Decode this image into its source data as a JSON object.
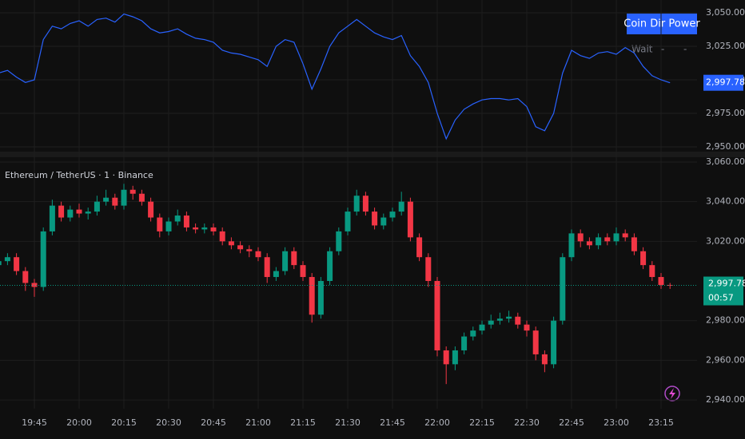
{
  "chart_data": [
    {
      "type": "line",
      "color": "#2962ff",
      "ylim": [
        2946.4,
        3059.5
      ],
      "yticks": [
        {
          "value": 2950,
          "label": "2,950.00"
        },
        {
          "value": 2975,
          "label": "2,975.00"
        },
        {
          "value": 3000,
          "label": "3,000.00"
        },
        {
          "value": 3025,
          "label": "3,025.00"
        },
        {
          "value": 3050,
          "label": "3,050.00"
        }
      ],
      "grid": true,
      "values": [
        3005,
        3007,
        3002,
        2998,
        3000,
        3030,
        3040,
        3038,
        3042,
        3044,
        3040,
        3045,
        3046,
        3043,
        3049,
        3047,
        3044,
        3038,
        3035,
        3036,
        3038,
        3034,
        3031,
        3030,
        3028,
        3022,
        3020,
        3019,
        3017,
        3015,
        3010,
        3025,
        3030,
        3028,
        3012,
        2993,
        3008,
        3025,
        3035,
        3040,
        3045,
        3040,
        3035,
        3032,
        3030,
        3033,
        3018,
        3010,
        2998,
        2975,
        2956,
        2970,
        2978,
        2982,
        2985,
        2986,
        2986,
        2985,
        2986,
        2980,
        2965,
        2962,
        2975,
        3005,
        3022,
        3018,
        3016,
        3020,
        3021,
        3019,
        3024,
        3020,
        3010,
        3003,
        3000,
        2997.78
      ],
      "last_value": {
        "value": 2997.78,
        "label": "2,997.78"
      },
      "table": {
        "header": "Coin Dir Power",
        "row": [
          "Wait",
          "-",
          "-"
        ]
      }
    },
    {
      "type": "candlestick",
      "title": "Ethereum / TetherUS · 1 · Binance",
      "up_color": "#089981",
      "down_color": "#f23645",
      "ylim": [
        2935.6,
        3062.4
      ],
      "yticks": [
        {
          "value": 2940,
          "label": "2,940.00"
        },
        {
          "value": 2960,
          "label": "2,960.00"
        },
        {
          "value": 2980,
          "label": "2,980.00"
        },
        {
          "value": 3020,
          "label": "3,020.00"
        },
        {
          "value": 3040,
          "label": "3,040.00"
        },
        {
          "value": 3060,
          "label": "3,060.00"
        }
      ],
      "grid": true,
      "xticks": [
        {
          "value": 4,
          "label": "19:45"
        },
        {
          "value": 9,
          "label": "20:00"
        },
        {
          "value": 14,
          "label": "20:15"
        },
        {
          "value": 19,
          "label": "20:30"
        },
        {
          "value": 24,
          "label": "20:45"
        },
        {
          "value": 29,
          "label": "21:00"
        },
        {
          "value": 34,
          "label": "21:15"
        },
        {
          "value": 39,
          "label": "21:30"
        },
        {
          "value": 44,
          "label": "21:45"
        },
        {
          "value": 49,
          "label": "22:00"
        },
        {
          "value": 54,
          "label": "22:15"
        },
        {
          "value": 59,
          "label": "22:30"
        },
        {
          "value": 64,
          "label": "22:45"
        },
        {
          "value": 69,
          "label": "23:00"
        },
        {
          "value": 74,
          "label": "23:15"
        }
      ],
      "open": [
        3008,
        3010,
        3012,
        3005,
        2999,
        2997,
        3025,
        3038,
        3032,
        3036,
        3034,
        3035,
        3040,
        3042,
        3038,
        3046,
        3044,
        3040,
        3032,
        3025,
        3030,
        3033,
        3027,
        3026,
        3027,
        3025,
        3020,
        3018,
        3016,
        3015,
        3012,
        3002,
        3005,
        3015,
        3008,
        3002,
        2983,
        3000,
        3015,
        3025,
        3035,
        3043,
        3035,
        3028,
        3032,
        3035,
        3040,
        3022,
        3012,
        3000,
        2965,
        2958,
        2965,
        2972,
        2975,
        2978,
        2980,
        2981,
        2982,
        2978,
        2975,
        2963,
        2958,
        2980,
        3012,
        3024,
        3020,
        3018,
        3022,
        3020,
        3024,
        3022,
        3015,
        3008,
        3002,
        2998
      ],
      "high": [
        3013,
        3014,
        3014,
        3007,
        3001,
        3027,
        3041,
        3040,
        3038,
        3039,
        3037,
        3043,
        3046,
        3044,
        3049,
        3048,
        3046,
        3042,
        3034,
        3032,
        3036,
        3035,
        3029,
        3029,
        3029,
        3027,
        3022,
        3020,
        3018,
        3017,
        3014,
        3007,
        3017,
        3017,
        3010,
        3004,
        3002,
        3017,
        3027,
        3037,
        3046,
        3045,
        3037,
        3034,
        3037,
        3045,
        3042,
        3024,
        3014,
        3002,
        2967,
        2967,
        2974,
        2977,
        2980,
        2983,
        2984,
        2985,
        2984,
        2980,
        2977,
        2965,
        2982,
        3014,
        3026,
        3026,
        3022,
        3024,
        3024,
        3027,
        3026,
        3024,
        3017,
        3010,
        3004,
        2999
      ],
      "low": [
        3006,
        3008,
        3003,
        2995,
        2992,
        2995,
        3023,
        3030,
        3030,
        3032,
        3031,
        3033,
        3038,
        3036,
        3036,
        3041,
        3038,
        3030,
        3022,
        3023,
        3028,
        3025,
        3024,
        3024,
        3023,
        3018,
        3016,
        3014,
        3012,
        3010,
        2999,
        3000,
        3003,
        3006,
        3000,
        2979,
        2981,
        2998,
        3013,
        3023,
        3033,
        3033,
        3026,
        3026,
        3030,
        3033,
        3020,
        3010,
        2997,
        2962,
        2948,
        2955,
        2963,
        2970,
        2973,
        2976,
        2978,
        2979,
        2976,
        2972,
        2960,
        2954,
        2956,
        2978,
        3010,
        3017,
        3016,
        3016,
        3018,
        3018,
        3020,
        3013,
        3006,
        3000,
        2996,
        2996
      ],
      "close": [
        3010,
        3012,
        3005,
        2999,
        2997,
        3025,
        3038,
        3032,
        3036,
        3034,
        3035,
        3040,
        3042,
        3038,
        3046,
        3044,
        3040,
        3032,
        3025,
        3030,
        3033,
        3027,
        3026,
        3027,
        3025,
        3020,
        3018,
        3016,
        3015,
        3012,
        3002,
        3005,
        3015,
        3008,
        3002,
        2983,
        3000,
        3015,
        3025,
        3035,
        3043,
        3035,
        3028,
        3032,
        3035,
        3040,
        3022,
        3012,
        3000,
        2965,
        2958,
        2965,
        2972,
        2975,
        2978,
        2980,
        2981,
        2982,
        2978,
        2975,
        2963,
        2958,
        2980,
        3012,
        3024,
        3020,
        3018,
        3022,
        3020,
        3024,
        3022,
        3015,
        3008,
        3002,
        2998,
        2997.78
      ],
      "last_price": {
        "value": 2997.78,
        "label": "2,997.78"
      },
      "countdown": "00:57"
    }
  ]
}
